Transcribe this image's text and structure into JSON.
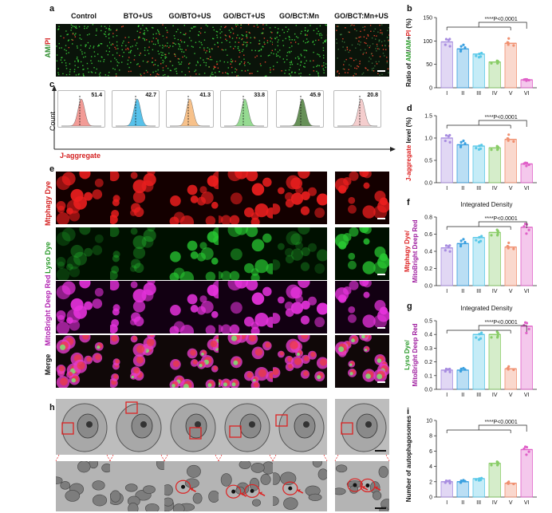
{
  "panel_letters": {
    "a": "a",
    "b": "b",
    "c": "c",
    "d": "d",
    "e": "e",
    "f": "f",
    "g": "g",
    "h": "h",
    "i": "i"
  },
  "groups": [
    "Control",
    "BTO+US",
    "GO/BTO+US",
    "GO/BCT+US",
    "GO/BCT:Mn",
    "GO/BCT:Mn+US"
  ],
  "row_labels": {
    "am_pi_prefix": "AM/",
    "am_pi_suffix": "PI",
    "mtphagy": "Mtphagy Dye",
    "lyso": "Lyso Dye",
    "mitobright": "MitoBright Deep Red",
    "merge": "Merge"
  },
  "flow": {
    "values": [
      "51.4",
      "42.7",
      "41.3",
      "33.8",
      "45.9",
      "20.8"
    ],
    "colors": [
      "#f08a84",
      "#3ab6e6",
      "#f6b676",
      "#82d47e",
      "#4b7d3a",
      "#f2c4c4"
    ],
    "count_label": "Count",
    "x_label": "J-aggregate"
  },
  "colors": {
    "b": "#a88de0",
    "ii": "#3aa0e0",
    "iii": "#58c8e8",
    "iv": "#88cc66",
    "v": "#f09070",
    "vi": "#e060c8"
  },
  "chart_data": [
    {
      "panel": "b",
      "type": "bar",
      "categories": [
        "I",
        "II",
        "III",
        "IV",
        "V",
        "VI"
      ],
      "values": [
        98,
        83,
        72,
        55,
        95,
        17
      ],
      "ylabel": "Ratio of AM/AM+PI (%)",
      "ylim": [
        0,
        150
      ],
      "yticks": [
        0,
        50,
        100,
        150
      ],
      "annotation": "****P<0.0001"
    },
    {
      "panel": "d",
      "type": "bar",
      "categories": [
        "I",
        "II",
        "III",
        "IV",
        "V",
        "VI"
      ],
      "values": [
        1.0,
        0.85,
        0.82,
        0.78,
        0.97,
        0.42
      ],
      "ylabel": "J-aggregate level (%)",
      "ylim": [
        0,
        1.5
      ],
      "yticks": [
        0.0,
        0.5,
        1.0,
        1.5
      ],
      "annotation": "****P<0.0001"
    },
    {
      "panel": "f",
      "type": "bar",
      "categories": [
        "I",
        "II",
        "III",
        "IV",
        "V",
        "VI"
      ],
      "values": [
        0.44,
        0.49,
        0.56,
        0.62,
        0.45,
        0.68
      ],
      "title": "Integrated Density",
      "ylabel_line1": "Mtphagy Dye/",
      "ylabel_line2": "MitoBright Deep Red",
      "ylim": [
        0,
        0.8
      ],
      "yticks": [
        0.0,
        0.2,
        0.4,
        0.6,
        0.8
      ],
      "annotation": "****P<0.0001"
    },
    {
      "panel": "g",
      "type": "bar",
      "categories": [
        "I",
        "II",
        "III",
        "IV",
        "V",
        "VI"
      ],
      "values": [
        0.14,
        0.14,
        0.4,
        0.4,
        0.15,
        0.46
      ],
      "title": "Integrated Density",
      "ylabel_line1": "Lyso Dye/",
      "ylabel_line2": "MitoBright Deep Red",
      "ylim": [
        0,
        0.5
      ],
      "yticks": [
        0.0,
        0.1,
        0.2,
        0.3,
        0.4,
        0.5
      ],
      "annotation": "****P<0.0001"
    },
    {
      "panel": "i",
      "type": "bar",
      "categories": [
        "I",
        "II",
        "III",
        "IV",
        "V",
        "VI"
      ],
      "values": [
        2,
        2,
        2.4,
        4.4,
        1.8,
        6.2
      ],
      "ylabel": "Number of autophagosomes",
      "ylim": [
        0,
        10
      ],
      "yticks": [
        0,
        2,
        4,
        6,
        8,
        10
      ],
      "annotation": "****P<0.0001"
    }
  ]
}
